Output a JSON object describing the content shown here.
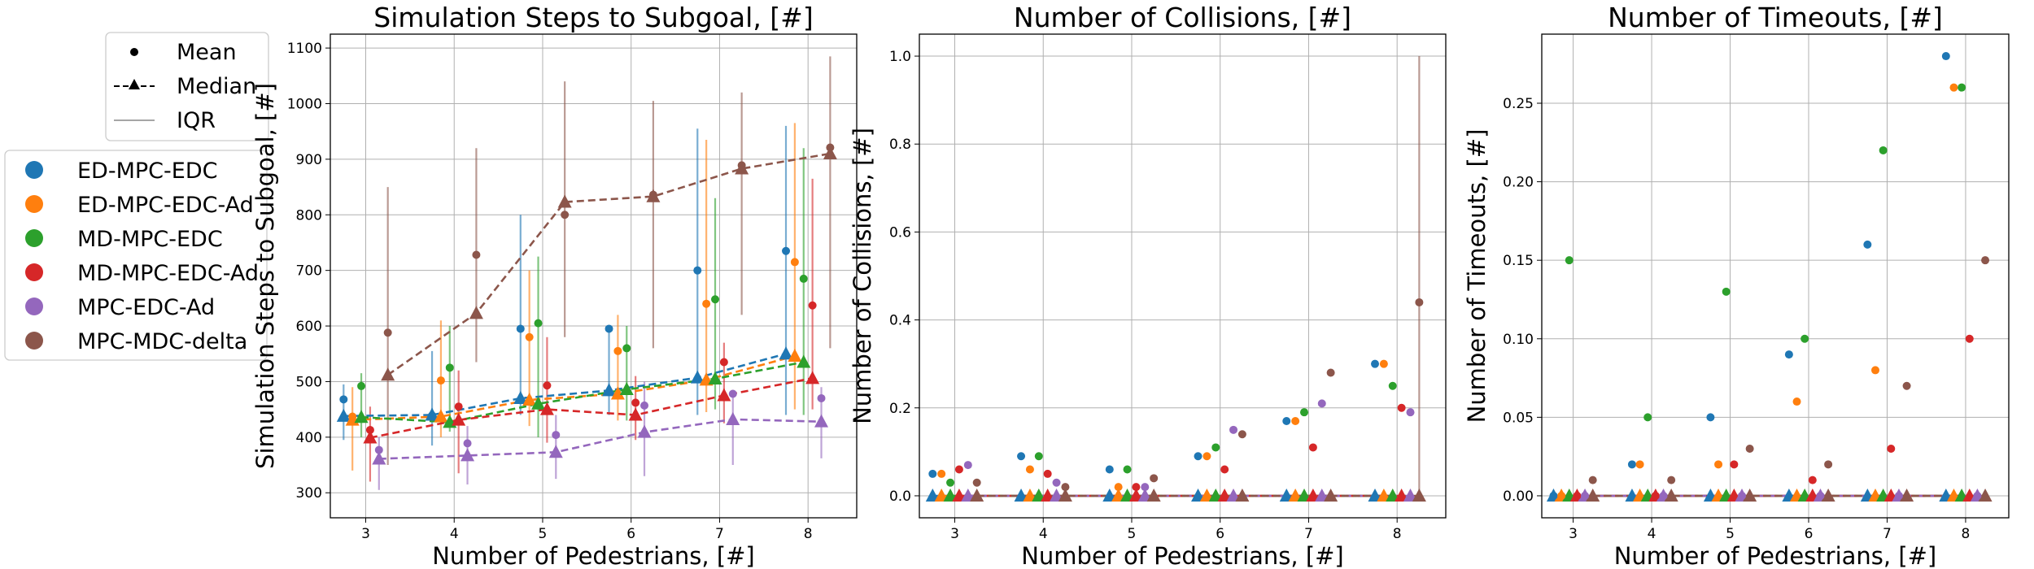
{
  "legend": {
    "style_entries": [
      {
        "label": "Mean",
        "marker": "circle",
        "linestyle": "none"
      },
      {
        "label": "Median",
        "marker": "triangle",
        "linestyle": "dashed"
      },
      {
        "label": "IQR",
        "marker": "none",
        "linestyle": "solid"
      }
    ],
    "method_entries": [
      {
        "label": "ED-MPC-EDC",
        "color": "#1f77b4"
      },
      {
        "label": "ED-MPC-EDC-Ad",
        "color": "#ff7f0e"
      },
      {
        "label": "MD-MPC-EDC",
        "color": "#2ca02c"
      },
      {
        "label": "MD-MPC-EDC-Ad",
        "color": "#d62728"
      },
      {
        "label": "MPC-EDC-Ad",
        "color": "#9467bd"
      },
      {
        "label": "MPC-MDC-delta",
        "color": "#8c564b"
      }
    ]
  },
  "chart_data": [
    {
      "type": "scatter",
      "title": "Simulation Steps to Subgoal, [#]",
      "xlabel": "Number of Pedestrians, [#]",
      "ylabel": "Simulation Steps to Subgoal, [#]",
      "x": [
        3,
        4,
        5,
        6,
        7,
        8
      ],
      "xlim": [
        2.6,
        8.55
      ],
      "ylim": [
        255,
        1125
      ],
      "yticks": [
        300,
        400,
        500,
        600,
        700,
        800,
        900,
        1000,
        1100
      ],
      "ytick_labels": [
        "300",
        "400",
        "500",
        "600",
        "700",
        "800",
        "900",
        "1000",
        "1100"
      ],
      "grid": true,
      "median_lines": true,
      "series": [
        {
          "name": "ED-MPC-EDC",
          "mean": [
            468,
            439,
            595,
            595,
            700,
            735
          ],
          "median": [
            438,
            440,
            470,
            484,
            507,
            550
          ],
          "iqr": [
            [
              395,
              495
            ],
            [
              385,
              555
            ],
            [
              440,
              800
            ],
            [
              440,
              600
            ],
            [
              440,
              955
            ],
            [
              440,
              960
            ]
          ]
        },
        {
          "name": "ED-MPC-EDC-Ad",
          "mean": [
            437,
            502,
            580,
            555,
            640,
            715
          ],
          "median": [
            431,
            437,
            467,
            478,
            503,
            546
          ],
          "iqr": [
            [
              340,
              490
            ],
            [
              400,
              610
            ],
            [
              420,
              700
            ],
            [
              430,
              620
            ],
            [
              445,
              935
            ],
            [
              450,
              965
            ]
          ]
        },
        {
          "name": "MD-MPC-EDC",
          "mean": [
            492,
            525,
            605,
            560,
            648,
            685
          ],
          "median": [
            436,
            427,
            460,
            486,
            505,
            535
          ],
          "iqr": [
            [
              400,
              515
            ],
            [
              410,
              600
            ],
            [
              400,
              725
            ],
            [
              430,
              600
            ],
            [
              450,
              830
            ],
            [
              440,
              920
            ]
          ]
        },
        {
          "name": "MD-MPC-EDC-Ad",
          "mean": [
            413,
            455,
            493,
            462,
            535,
            637
          ],
          "median": [
            399,
            431,
            450,
            440,
            475,
            506
          ],
          "iqr": [
            [
              320,
              455
            ],
            [
              335,
              520
            ],
            [
              390,
              580
            ],
            [
              395,
              510
            ],
            [
              425,
              570
            ],
            [
              450,
              865
            ]
          ]
        },
        {
          "name": "MPC-EDC-Ad",
          "mean": [
            377,
            389,
            404,
            457,
            478,
            470
          ],
          "median": [
            361,
            367,
            373,
            409,
            432,
            428
          ],
          "iqr": [
            [
              305,
              400
            ],
            [
              315,
              420
            ],
            [
              325,
              440
            ],
            [
              330,
              500
            ],
            [
              350,
              485
            ],
            [
              362,
              490
            ]
          ]
        },
        {
          "name": "MPC-MDC-delta",
          "mean": [
            588,
            728,
            800,
            836,
            889,
            921
          ],
          "median": [
            512,
            623,
            823,
            833,
            883,
            910
          ],
          "iqr": [
            [
              350,
              850
            ],
            [
              535,
              920
            ],
            [
              580,
              1040
            ],
            [
              560,
              1005
            ],
            [
              620,
              1020
            ],
            [
              560,
              1085
            ]
          ]
        }
      ]
    },
    {
      "type": "scatter",
      "title": "Number of Collisions, [#]",
      "xlabel": "Number of Pedestrians, [#]",
      "ylabel": "Number of Collisions, [#]",
      "x": [
        3,
        4,
        5,
        6,
        7,
        8
      ],
      "xlim": [
        2.6,
        8.55
      ],
      "ylim": [
        -0.05,
        1.05
      ],
      "yticks": [
        0.0,
        0.2,
        0.4,
        0.6,
        0.8,
        1.0
      ],
      "ytick_labels": [
        "0.0",
        "0.2",
        "0.4",
        "0.6",
        "0.8",
        "1.0"
      ],
      "grid": true,
      "median_lines": true,
      "series": [
        {
          "name": "ED-MPC-EDC",
          "mean": [
            0.05,
            0.09,
            0.06,
            0.09,
            0.17,
            0.3
          ],
          "median": [
            0,
            0,
            0,
            0,
            0,
            0
          ],
          "iqr": [
            [
              0,
              0
            ],
            [
              0,
              0
            ],
            [
              0,
              0
            ],
            [
              0,
              0
            ],
            [
              0,
              0
            ],
            [
              0,
              0
            ]
          ]
        },
        {
          "name": "ED-MPC-EDC-Ad",
          "mean": [
            0.05,
            0.06,
            0.02,
            0.09,
            0.17,
            0.3
          ],
          "median": [
            0,
            0,
            0,
            0,
            0,
            0
          ],
          "iqr": [
            [
              0,
              0
            ],
            [
              0,
              0
            ],
            [
              0,
              0
            ],
            [
              0,
              0
            ],
            [
              0,
              0
            ],
            [
              0,
              0
            ]
          ]
        },
        {
          "name": "MD-MPC-EDC",
          "mean": [
            0.03,
            0.09,
            0.06,
            0.11,
            0.19,
            0.25
          ],
          "median": [
            0,
            0,
            0,
            0,
            0,
            0
          ],
          "iqr": [
            [
              0,
              0
            ],
            [
              0,
              0
            ],
            [
              0,
              0
            ],
            [
              0,
              0
            ],
            [
              0,
              0
            ],
            [
              0,
              0
            ]
          ]
        },
        {
          "name": "MD-MPC-EDC-Ad",
          "mean": [
            0.06,
            0.05,
            0.02,
            0.06,
            0.11,
            0.2
          ],
          "median": [
            0,
            0,
            0,
            0,
            0,
            0
          ],
          "iqr": [
            [
              0,
              0
            ],
            [
              0,
              0
            ],
            [
              0,
              0
            ],
            [
              0,
              0
            ],
            [
              0,
              0
            ],
            [
              0,
              0
            ]
          ]
        },
        {
          "name": "MPC-EDC-Ad",
          "mean": [
            0.07,
            0.03,
            0.02,
            0.15,
            0.21,
            0.19
          ],
          "median": [
            0,
            0,
            0,
            0,
            0,
            0
          ],
          "iqr": [
            [
              0,
              0
            ],
            [
              0,
              0
            ],
            [
              0,
              0
            ],
            [
              0,
              0
            ],
            [
              0,
              0
            ],
            [
              0,
              0
            ]
          ]
        },
        {
          "name": "MPC-MDC-delta",
          "mean": [
            0.03,
            0.02,
            0.04,
            0.14,
            0.28,
            0.44
          ],
          "median": [
            0,
            0,
            0,
            0,
            0,
            0
          ],
          "iqr": [
            [
              0,
              0
            ],
            [
              0,
              0
            ],
            [
              0,
              0
            ],
            [
              0,
              0
            ],
            [
              0,
              0
            ],
            [
              0,
              1.0
            ]
          ]
        }
      ]
    },
    {
      "type": "scatter",
      "title": "Number of Timeouts, [#]",
      "xlabel": "Number of Pedestrians, [#]",
      "ylabel": "Number of Timeouts, [#]",
      "x": [
        3,
        4,
        5,
        6,
        7,
        8
      ],
      "xlim": [
        2.6,
        8.55
      ],
      "ylim": [
        -0.014,
        0.294
      ],
      "yticks": [
        0.0,
        0.05,
        0.1,
        0.15,
        0.2,
        0.25
      ],
      "ytick_labels": [
        "0.00",
        "0.05",
        "0.10",
        "0.15",
        "0.20",
        "0.25"
      ],
      "grid": true,
      "median_lines": true,
      "series": [
        {
          "name": "ED-MPC-EDC",
          "mean": [
            0.0,
            0.02,
            0.05,
            0.09,
            0.16,
            0.28
          ],
          "median": [
            0,
            0,
            0,
            0,
            0,
            0
          ],
          "iqr": [
            [
              0,
              0
            ],
            [
              0,
              0
            ],
            [
              0,
              0
            ],
            [
              0,
              0
            ],
            [
              0,
              0
            ],
            [
              0,
              0
            ]
          ]
        },
        {
          "name": "ED-MPC-EDC-Ad",
          "mean": [
            0.0,
            0.02,
            0.02,
            0.06,
            0.08,
            0.26
          ],
          "median": [
            0,
            0,
            0,
            0,
            0,
            0
          ],
          "iqr": [
            [
              0,
              0
            ],
            [
              0,
              0
            ],
            [
              0,
              0
            ],
            [
              0,
              0
            ],
            [
              0,
              0
            ],
            [
              0,
              0
            ]
          ]
        },
        {
          "name": "MD-MPC-EDC",
          "mean": [
            0.15,
            0.05,
            0.13,
            0.1,
            0.22,
            0.26
          ],
          "median": [
            0,
            0,
            0,
            0,
            0,
            0
          ],
          "iqr": [
            [
              0,
              0
            ],
            [
              0,
              0
            ],
            [
              0,
              0
            ],
            [
              0,
              0
            ],
            [
              0,
              0
            ],
            [
              0,
              0
            ]
          ]
        },
        {
          "name": "MD-MPC-EDC-Ad",
          "mean": [
            0.0,
            0.0,
            0.02,
            0.01,
            0.03,
            0.1
          ],
          "median": [
            0,
            0,
            0,
            0,
            0,
            0
          ],
          "iqr": [
            [
              0,
              0
            ],
            [
              0,
              0
            ],
            [
              0,
              0
            ],
            [
              0,
              0
            ],
            [
              0,
              0
            ],
            [
              0,
              0
            ]
          ]
        },
        {
          "name": "MPC-EDC-Ad",
          "mean": [
            0.0,
            0.0,
            0.0,
            0.0,
            0.0,
            0.0
          ],
          "median": [
            0,
            0,
            0,
            0,
            0,
            0
          ],
          "iqr": [
            [
              0,
              0
            ],
            [
              0,
              0
            ],
            [
              0,
              0
            ],
            [
              0,
              0
            ],
            [
              0,
              0
            ],
            [
              0,
              0
            ]
          ]
        },
        {
          "name": "MPC-MDC-delta",
          "mean": [
            0.01,
            0.01,
            0.03,
            0.02,
            0.07,
            0.15
          ],
          "median": [
            0,
            0,
            0,
            0,
            0,
            0
          ],
          "iqr": [
            [
              0,
              0
            ],
            [
              0,
              0
            ],
            [
              0,
              0
            ],
            [
              0,
              0
            ],
            [
              0,
              0
            ],
            [
              0,
              0
            ]
          ]
        }
      ]
    }
  ]
}
